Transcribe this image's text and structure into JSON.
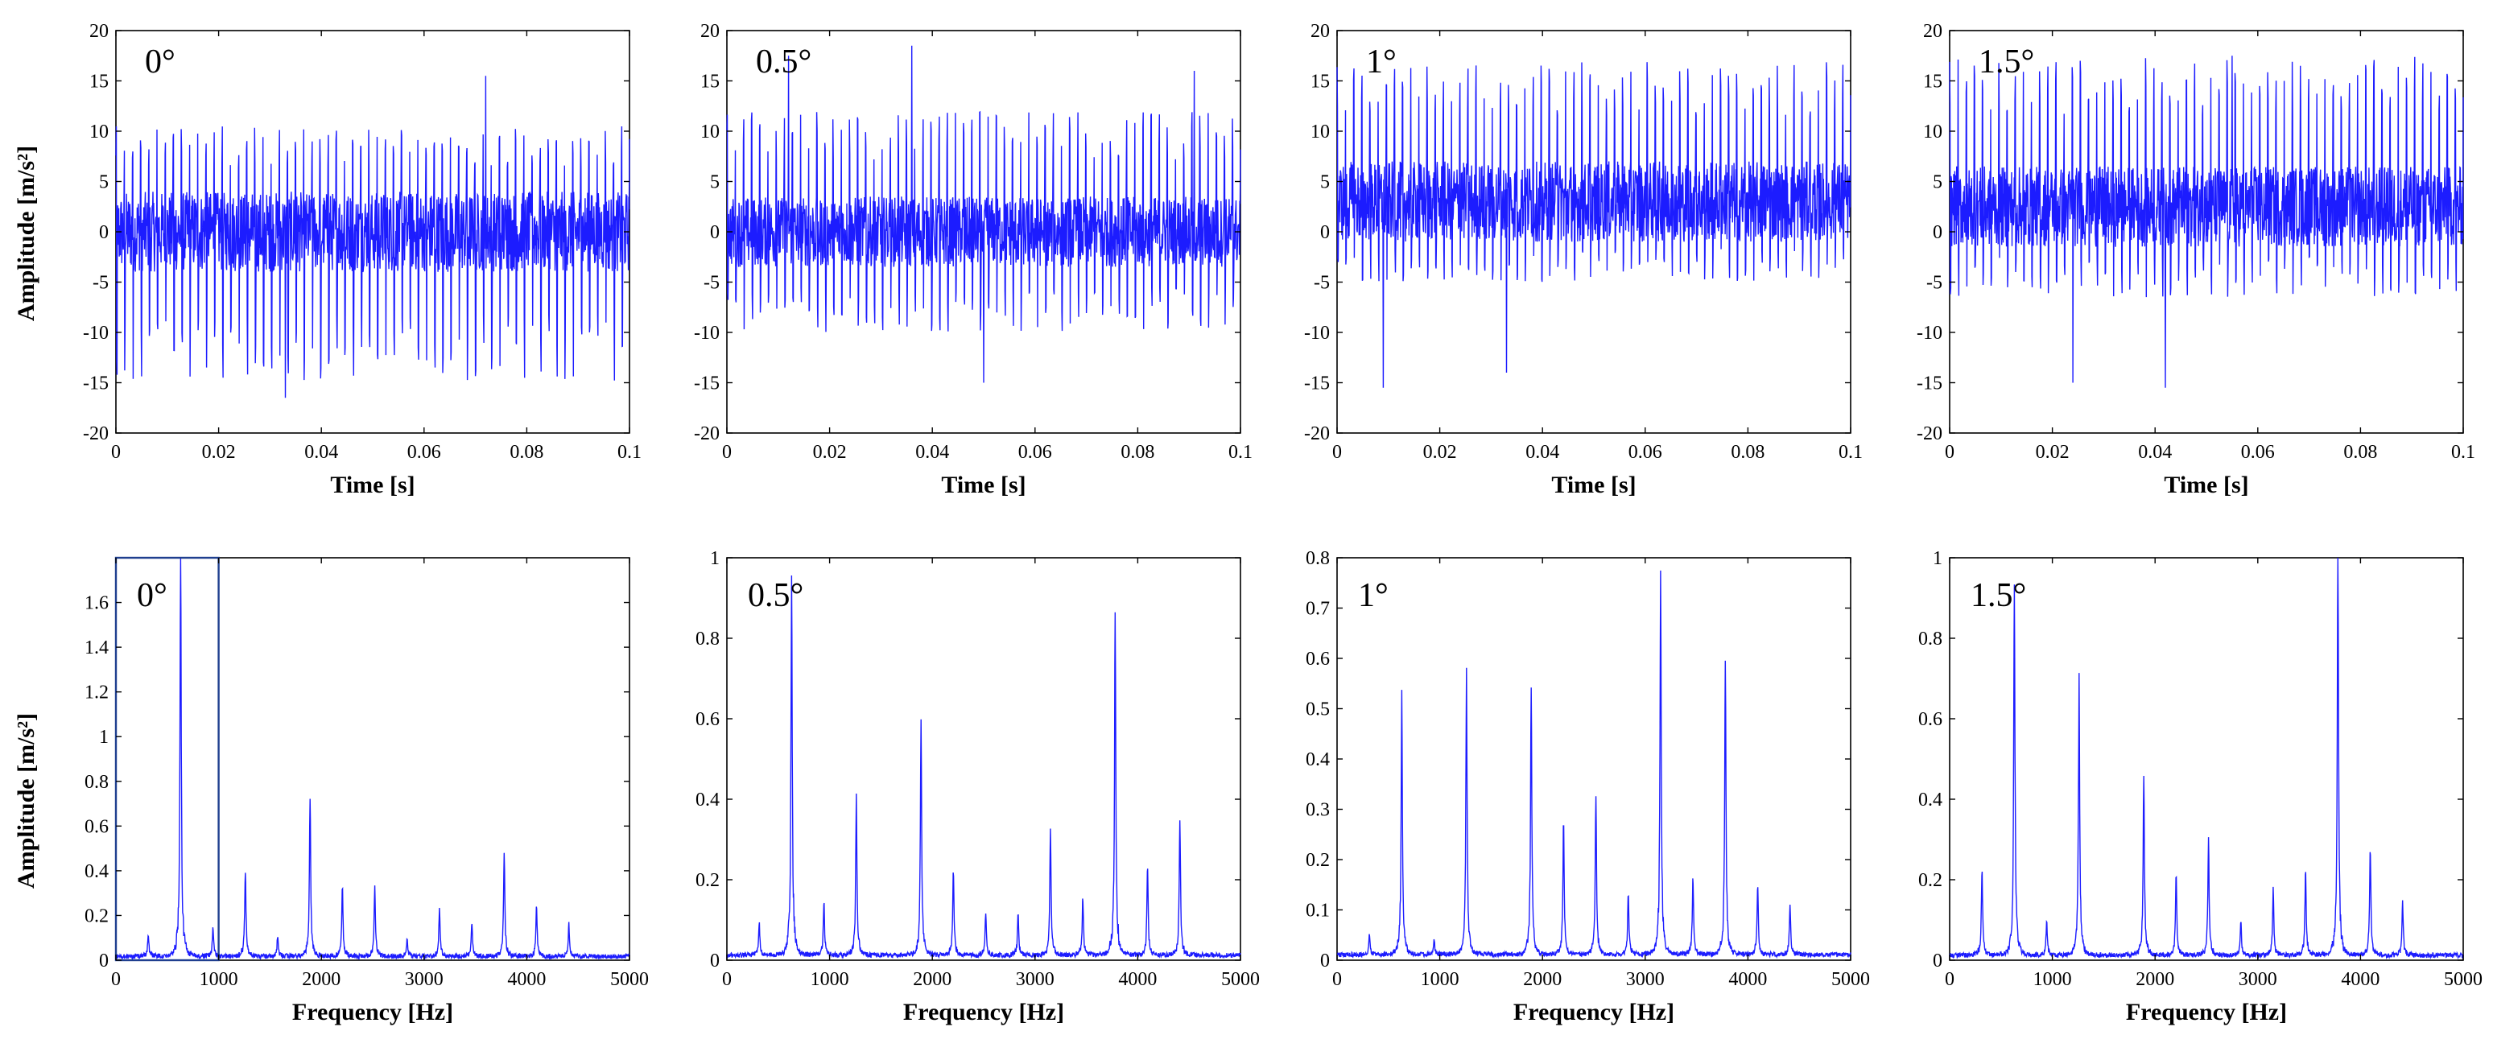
{
  "figure": {
    "time_xlabel": "Time [s]",
    "freq_xlabel": "Frequency [Hz]",
    "time_ylabel": "Amplitude [m/s²]",
    "freq_ylabel": "Amplitude [m/s²]"
  },
  "colors": {
    "signal": "#1c1cff",
    "axes": "#000000",
    "highlight_box": "#1f3f8f"
  },
  "chart_data": [
    {
      "id": "time-0",
      "type": "line",
      "title": "0°",
      "xlabel": "Time [s]",
      "ylabel": "Amplitude [m/s²]",
      "xlim": [
        0,
        0.1
      ],
      "ylim": [
        -20,
        20
      ],
      "xticks": [
        0,
        0.02,
        0.04,
        0.06,
        0.08,
        0.1
      ],
      "xtick_labels": [
        "0",
        "0.02",
        "0.04",
        "0.06",
        "0.08",
        "0.1"
      ],
      "yticks": [
        -20,
        -15,
        -10,
        -5,
        0,
        5,
        10,
        15,
        20
      ],
      "ytick_labels": [
        "-20",
        "-15",
        "-10",
        "-5",
        "0",
        "5",
        "10",
        "15",
        "20"
      ],
      "signal": {
        "fundamental_hz": 630,
        "offset": 0,
        "envelope_max": 10.5,
        "envelope_min": -15,
        "noise": 4,
        "spikes": [
          [
            0.072,
            15.5
          ],
          [
            0.033,
            -16.5
          ]
        ]
      }
    },
    {
      "id": "time-0.5",
      "type": "line",
      "title": "0.5°",
      "xlabel": "Time [s]",
      "ylabel": "",
      "xlim": [
        0,
        0.1
      ],
      "ylim": [
        -20,
        20
      ],
      "xticks": [
        0,
        0.02,
        0.04,
        0.06,
        0.08,
        0.1
      ],
      "xtick_labels": [
        "0",
        "0.02",
        "0.04",
        "0.06",
        "0.08",
        "0.1"
      ],
      "yticks": [
        -20,
        -15,
        -10,
        -5,
        0,
        5,
        10,
        15,
        20
      ],
      "ytick_labels": [
        "-20",
        "-15",
        "-10",
        "-5",
        "0",
        "5",
        "10",
        "15",
        "20"
      ],
      "signal": {
        "fundamental_hz": 630,
        "offset": 0,
        "envelope_max": 12,
        "envelope_min": -10,
        "noise": 3.5,
        "spikes": [
          [
            0.036,
            18.5
          ],
          [
            0.012,
            17.5
          ],
          [
            0.091,
            16
          ],
          [
            0.05,
            -15
          ]
        ]
      }
    },
    {
      "id": "time-1",
      "type": "line",
      "title": "1°",
      "xlabel": "Time [s]",
      "ylabel": "",
      "xlim": [
        0,
        0.1
      ],
      "ylim": [
        -20,
        20
      ],
      "xticks": [
        0,
        0.02,
        0.04,
        0.06,
        0.08,
        0.1
      ],
      "xtick_labels": [
        "0",
        "0.02",
        "0.04",
        "0.06",
        "0.08",
        "0.1"
      ],
      "yticks": [
        -20,
        -15,
        -10,
        -5,
        0,
        5,
        10,
        15,
        20
      ],
      "ytick_labels": [
        "-20",
        "-15",
        "-10",
        "-5",
        "0",
        "5",
        "10",
        "15",
        "20"
      ],
      "signal": {
        "fundamental_hz": 630,
        "offset": 3,
        "envelope_max": 14,
        "envelope_min": -8,
        "noise": 4,
        "spikes": [
          [
            0.009,
            -15.5
          ],
          [
            0.033,
            -14
          ]
        ]
      }
    },
    {
      "id": "time-1.5",
      "type": "line",
      "title": "1.5°",
      "xlabel": "Time [s]",
      "ylabel": "",
      "xlim": [
        0,
        0.1
      ],
      "ylim": [
        -20,
        20
      ],
      "xticks": [
        0,
        0.02,
        0.04,
        0.06,
        0.08,
        0.1
      ],
      "xtick_labels": [
        "0",
        "0.02",
        "0.04",
        "0.06",
        "0.08",
        "0.1"
      ],
      "yticks": [
        -20,
        -15,
        -10,
        -5,
        0,
        5,
        10,
        15,
        20
      ],
      "ytick_labels": [
        "-20",
        "-15",
        "-10",
        "-5",
        "0",
        "5",
        "10",
        "15",
        "20"
      ],
      "signal": {
        "fundamental_hz": 630,
        "offset": 2.5,
        "envelope_max": 15,
        "envelope_min": -9,
        "noise": 4,
        "spikes": [
          [
            0.055,
            17.5
          ],
          [
            0.024,
            -15
          ],
          [
            0.042,
            -15.5
          ]
        ]
      }
    },
    {
      "id": "freq-0",
      "type": "line",
      "title": "0°",
      "xlabel": "Frequency [Hz]",
      "ylabel": "Amplitude [m/s²]",
      "xlim": [
        0,
        5000
      ],
      "ylim": [
        0,
        1.8
      ],
      "xticks": [
        0,
        1000,
        2000,
        3000,
        4000,
        5000
      ],
      "xtick_labels": [
        "0",
        "1000",
        "2000",
        "3000",
        "4000",
        "5000"
      ],
      "yticks": [
        0,
        0.2,
        0.4,
        0.6,
        0.8,
        1,
        1.2,
        1.4,
        1.6
      ],
      "ytick_labels": [
        "0",
        "0.2",
        "0.4",
        "0.6",
        "0.8",
        "1",
        "1.2",
        "1.4",
        "1.6"
      ],
      "highlight_range": [
        0,
        1000
      ],
      "peaks": [
        [
          315,
          0.1
        ],
        [
          630,
          1.76
        ],
        [
          945,
          0.13
        ],
        [
          1260,
          0.38
        ],
        [
          1575,
          0.09
        ],
        [
          1890,
          0.7
        ],
        [
          2205,
          0.31
        ],
        [
          2520,
          0.3
        ],
        [
          2835,
          0.08
        ],
        [
          3150,
          0.21
        ],
        [
          3465,
          0.15
        ],
        [
          3780,
          0.44
        ],
        [
          4095,
          0.22
        ],
        [
          4410,
          0.14
        ]
      ]
    },
    {
      "id": "freq-0.5",
      "type": "line",
      "title": "0.5°",
      "xlabel": "Frequency [Hz]",
      "ylabel": "",
      "xlim": [
        0,
        5000
      ],
      "ylim": [
        0,
        1
      ],
      "xticks": [
        0,
        1000,
        2000,
        3000,
        4000,
        5000
      ],
      "xtick_labels": [
        "0",
        "1000",
        "2000",
        "3000",
        "4000",
        "5000"
      ],
      "yticks": [
        0,
        0.2,
        0.4,
        0.6,
        0.8,
        1
      ],
      "ytick_labels": [
        "0",
        "0.2",
        "0.4",
        "0.6",
        "0.8",
        "1"
      ],
      "peaks": [
        [
          315,
          0.08
        ],
        [
          630,
          0.92
        ],
        [
          945,
          0.13
        ],
        [
          1260,
          0.38
        ],
        [
          1890,
          0.57
        ],
        [
          2205,
          0.21
        ],
        [
          2520,
          0.1
        ],
        [
          2835,
          0.1
        ],
        [
          3150,
          0.31
        ],
        [
          3465,
          0.14
        ],
        [
          3780,
          0.84
        ],
        [
          4095,
          0.21
        ],
        [
          4410,
          0.33
        ]
      ]
    },
    {
      "id": "freq-1",
      "type": "line",
      "title": "1°",
      "xlabel": "Frequency [Hz]",
      "ylabel": "",
      "xlim": [
        0,
        5000
      ],
      "ylim": [
        0,
        0.8
      ],
      "xticks": [
        0,
        1000,
        2000,
        3000,
        4000,
        5000
      ],
      "xtick_labels": [
        "0",
        "1000",
        "2000",
        "3000",
        "4000",
        "5000"
      ],
      "yticks": [
        0,
        0.1,
        0.2,
        0.3,
        0.4,
        0.5,
        0.6,
        0.7,
        0.8
      ],
      "ytick_labels": [
        "0",
        "0.1",
        "0.2",
        "0.3",
        "0.4",
        "0.5",
        "0.6",
        "0.7",
        "0.8"
      ],
      "peaks": [
        [
          315,
          0.04
        ],
        [
          630,
          0.5
        ],
        [
          945,
          0.03
        ],
        [
          1260,
          0.54
        ],
        [
          1890,
          0.53
        ],
        [
          2205,
          0.26
        ],
        [
          2520,
          0.31
        ],
        [
          2835,
          0.12
        ],
        [
          3150,
          0.73
        ],
        [
          3465,
          0.15
        ],
        [
          3780,
          0.58
        ],
        [
          4095,
          0.13
        ],
        [
          4410,
          0.1
        ]
      ]
    },
    {
      "id": "freq-1.5",
      "type": "line",
      "title": "1.5°",
      "xlabel": "Frequency [Hz]",
      "ylabel": "",
      "xlim": [
        0,
        5000
      ],
      "ylim": [
        0,
        1
      ],
      "xticks": [
        0,
        1000,
        2000,
        3000,
        4000,
        5000
      ],
      "xtick_labels": [
        "0",
        "1000",
        "2000",
        "3000",
        "4000",
        "5000"
      ],
      "yticks": [
        0,
        0.2,
        0.4,
        0.6,
        0.8,
        1
      ],
      "ytick_labels": [
        "0",
        "0.2",
        "0.4",
        "0.6",
        "0.8",
        "1"
      ],
      "peaks": [
        [
          315,
          0.21
        ],
        [
          630,
          0.91
        ],
        [
          945,
          0.08
        ],
        [
          1260,
          0.66
        ],
        [
          1890,
          0.44
        ],
        [
          2205,
          0.2
        ],
        [
          2520,
          0.28
        ],
        [
          2835,
          0.08
        ],
        [
          3150,
          0.16
        ],
        [
          3465,
          0.2
        ],
        [
          3780,
          0.99
        ],
        [
          4095,
          0.26
        ],
        [
          4410,
          0.13
        ]
      ]
    }
  ]
}
